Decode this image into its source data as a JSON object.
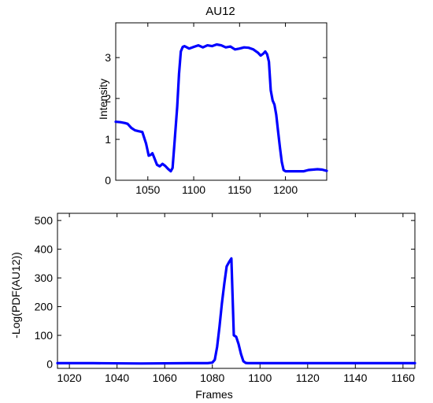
{
  "chart_data": [
    {
      "type": "line",
      "title": "AU12",
      "xlabel": "",
      "ylabel": "Intensity",
      "xlim": [
        1015,
        1245
      ],
      "ylim": [
        0,
        3.85
      ],
      "grid": false,
      "xticks": [
        1050,
        1100,
        1150,
        1200
      ],
      "yticks": [
        0,
        1,
        2,
        3
      ],
      "line_color": "#0000ff",
      "series": [
        {
          "x": [
            1015,
            1020,
            1025,
            1028,
            1032,
            1036,
            1040,
            1044,
            1048,
            1051,
            1053,
            1055,
            1057,
            1060,
            1063,
            1066,
            1069,
            1072,
            1075,
            1077,
            1079,
            1082,
            1084,
            1086,
            1088,
            1090,
            1095,
            1100,
            1105,
            1110,
            1115,
            1120,
            1125,
            1130,
            1135,
            1140,
            1145,
            1150,
            1155,
            1160,
            1165,
            1170,
            1173,
            1176,
            1178,
            1180,
            1182,
            1184,
            1186,
            1188,
            1190,
            1192,
            1194,
            1196,
            1198,
            1200,
            1210,
            1220,
            1225,
            1230,
            1235,
            1240,
            1245
          ],
          "y": [
            1.43,
            1.42,
            1.4,
            1.38,
            1.28,
            1.22,
            1.2,
            1.18,
            0.9,
            0.6,
            0.62,
            0.66,
            0.55,
            0.38,
            0.34,
            0.4,
            0.35,
            0.28,
            0.22,
            0.3,
            0.9,
            1.8,
            2.6,
            3.15,
            3.26,
            3.28,
            3.22,
            3.26,
            3.3,
            3.25,
            3.3,
            3.28,
            3.32,
            3.3,
            3.25,
            3.27,
            3.2,
            3.22,
            3.25,
            3.24,
            3.2,
            3.12,
            3.05,
            3.1,
            3.15,
            3.08,
            2.9,
            2.2,
            1.95,
            1.85,
            1.6,
            1.2,
            0.8,
            0.45,
            0.25,
            0.22,
            0.22,
            0.22,
            0.25,
            0.26,
            0.27,
            0.26,
            0.23
          ]
        }
      ]
    },
    {
      "type": "line",
      "title": "",
      "xlabel": "Frames",
      "ylabel": "-Log(PDF(AU12))",
      "xlim": [
        1015,
        1165
      ],
      "ylim": [
        -15,
        525
      ],
      "grid": false,
      "xticks": [
        1020,
        1040,
        1060,
        1080,
        1100,
        1120,
        1140,
        1160
      ],
      "yticks": [
        0,
        100,
        200,
        300,
        400,
        500
      ],
      "line_color": "#0000ff",
      "series": [
        {
          "x": [
            1015,
            1030,
            1050,
            1070,
            1078,
            1080,
            1081,
            1082,
            1083,
            1084,
            1085,
            1086,
            1087,
            1088,
            1089,
            1090,
            1091,
            1092,
            1093,
            1094,
            1095,
            1100,
            1110,
            1130,
            1150,
            1165
          ],
          "y": [
            3,
            3,
            2,
            3,
            3,
            5,
            15,
            60,
            130,
            210,
            280,
            340,
            355,
            368,
            100,
            95,
            70,
            35,
            10,
            4,
            3,
            3,
            3,
            3,
            3,
            3
          ]
        }
      ]
    }
  ]
}
